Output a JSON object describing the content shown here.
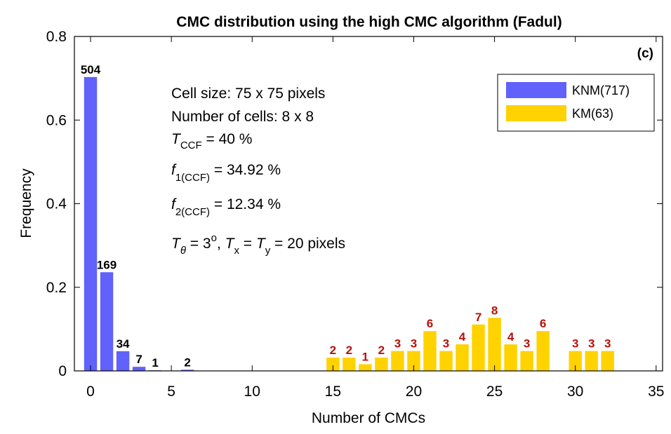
{
  "chart_data": {
    "type": "bar",
    "title": "CMC distribution using the high CMC algorithm (Fadul)",
    "xlabel": "Number of CMCs",
    "ylabel": "Frequency",
    "xlim": [
      -1,
      35.4
    ],
    "ylim": [
      0,
      0.8
    ],
    "xticks": [
      "0",
      "5",
      "10",
      "15",
      "20",
      "25",
      "30",
      "35"
    ],
    "yticks": [
      "0",
      "0.2",
      "0.4",
      "0.6",
      "0.8"
    ],
    "panel_label": "(c)",
    "legend_position": "top-right",
    "grid": false,
    "series": [
      {
        "name": "KNM(717)",
        "color": "#6161fb",
        "label_color": "#000000",
        "x": [
          0,
          1,
          2,
          3,
          4,
          6
        ],
        "counts": [
          504,
          169,
          34,
          7,
          1,
          2
        ],
        "labels": [
          "504",
          "169",
          "34",
          "7",
          "1",
          "2"
        ],
        "values": [
          0.703,
          0.236,
          0.047,
          0.0098,
          0.0014,
          0.0028
        ]
      },
      {
        "name": "KM(63)",
        "color": "#ffd200",
        "label_color": "#b4120a",
        "x": [
          15,
          16,
          17,
          18,
          19,
          20,
          21,
          22,
          23,
          24,
          25,
          26,
          27,
          28,
          30,
          31,
          32
        ],
        "counts": [
          2,
          2,
          1,
          2,
          3,
          3,
          6,
          3,
          4,
          7,
          8,
          4,
          3,
          6,
          3,
          3,
          3
        ],
        "labels": [
          "2",
          "2",
          "1",
          "2",
          "3",
          "3",
          "6",
          "3",
          "4",
          "7",
          "8",
          "4",
          "3",
          "6",
          "3",
          "3",
          "3"
        ],
        "values": [
          0.0317,
          0.0317,
          0.0159,
          0.0317,
          0.0476,
          0.0476,
          0.0952,
          0.0476,
          0.0635,
          0.1111,
          0.127,
          0.0635,
          0.0476,
          0.0952,
          0.0476,
          0.0476,
          0.0476
        ]
      }
    ],
    "annotations": {
      "cell_size": "Cell size: 75 x 75 pixels",
      "num_cells": "Number of cells: 8 x 8",
      "tccf_sym": "T",
      "tccf_sub": "CCF",
      "tccf_val": " = 40 %",
      "f1_sym": "f",
      "f1_sub": "1(CCF)",
      "f1_val": " = 34.92 %",
      "f2_sym": "f",
      "f2_sub": "2(CCF)",
      "f2_val": " = 12.34 %",
      "tt_sym": "T",
      "tt_sub": "θ",
      "tt_eq": " = 3",
      "tt_sup": "o",
      "tt_sep": ", ",
      "tx_sym": "T",
      "tx_sub": "x",
      "tx_eq": " = ",
      "ty_sym": "T",
      "ty_sub": "y",
      "ty_val": " = 20 pixels"
    }
  }
}
